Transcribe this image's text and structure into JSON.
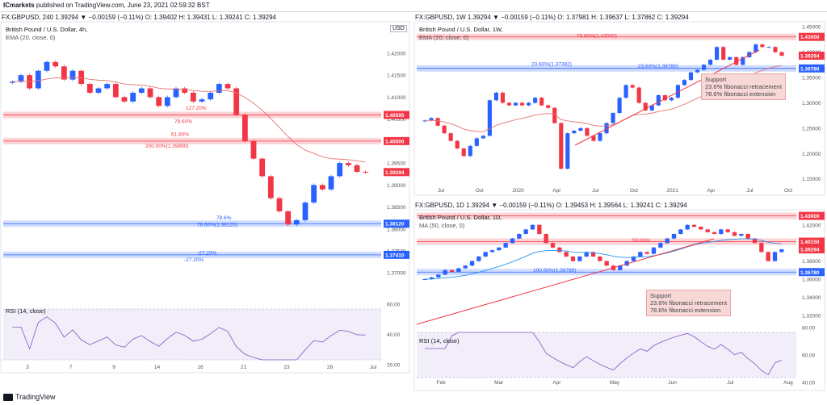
{
  "header": {
    "publisher": "ICmarkets",
    "published_text": "published on TradingView.com, June 23, 2021 02:59:32 BST",
    "logo_text": "TradingView"
  },
  "panels": [
    {
      "id": "gbpusd-4h",
      "header": "FX:GBPUSD, 240  1.39294 ▼ −0.00159 (−0.11%)  O: 1.39402  H: 1.39431  L: 1.39241  C: 1.39294",
      "symbol_title": "British Pound / U.S. Dollar, 4h,",
      "indicator": "EMA (20, close, 0)",
      "currency_badge": "USD",
      "price_labels": [
        "1.42000",
        "1.41500",
        "1.41000",
        "1.40500",
        "1.40000",
        "1.39500",
        "1.39000",
        "1.38500",
        "1.38000",
        "1.37500",
        "1.37000"
      ],
      "highlight_labels": [
        {
          "text": "1.40595",
          "color": "#f23645",
          "y": 1.40595
        },
        {
          "text": "1.40000",
          "color": "#f23645",
          "y": 1.4
        },
        {
          "text": "1.39294",
          "color": "#f23645",
          "y": 1.39294
        },
        {
          "text": "1.38120",
          "color": "#2962ff",
          "y": 1.3812
        },
        {
          "text": "1.37410",
          "color": "#2962ff",
          "y": 1.3741
        }
      ],
      "fib_texts": [
        "127.20%",
        "78.60%",
        "61.80%",
        "200.00%(1.39890)",
        "78.6%",
        "78.60%(1.38120)",
        "-27.20%",
        "-27.20%"
      ],
      "time_labels": [
        "3",
        "7",
        "9",
        "14",
        "16",
        "21",
        "23",
        "28",
        "Jul"
      ],
      "rsi_label": "RSI (14, close)",
      "rsi_levels": [
        "60.00",
        "40.00",
        "20.00"
      ]
    },
    {
      "id": "gbpusd-1w",
      "header": "FX:GBPUSD, 1W  1.39294 ▼ −0.00159 (−0.11%)  O: 1.37981  H: 1.39637  L: 1.37862  C: 1.39294",
      "symbol_title": "British Pound / U.S. Dollar, 1W,",
      "indicator": "EMA (20, close, 0)",
      "price_labels": [
        "1.45000",
        "1.43000",
        "1.40000",
        "1.35000",
        "1.30000",
        "1.25000",
        "1.20000",
        "1.15000"
      ],
      "highlight_labels": [
        {
          "text": "1.43000",
          "color": "#f23645",
          "y": 1.43
        },
        {
          "text": "1.39294",
          "color": "#f23645",
          "y": 1.39294
        },
        {
          "text": "1.36780",
          "color": "#2962ff",
          "y": 1.3678
        }
      ],
      "fib_texts": [
        "78.60%(1.43000)",
        "23.60%(1.37382)",
        "23.60%(1.36780)"
      ],
      "support_note": [
        "Support",
        "23.6% fibonacci retracement",
        "78.6% fibonacci extension"
      ],
      "time_labels": [
        "Jul",
        "Oct",
        "2020",
        "Apr",
        "Jul",
        "Oct",
        "2021",
        "Apr",
        "Jul",
        "Oct"
      ]
    },
    {
      "id": "gbpusd-1d",
      "header": "FX:GBPUSD, 1D  1.39294 ▼ −0.00159 (−0.11%)  O: 1.39453  H: 1.39564  L: 1.39241  C: 1.39294",
      "symbol_title": "British Pound / U.S. Dollar, 1D,",
      "indicator": "MA (50, close, 0)",
      "price_labels": [
        "1.42000",
        "1.40000",
        "1.38000",
        "1.36000",
        "1.34000",
        "1.32000"
      ],
      "highlight_labels": [
        {
          "text": "1.43000",
          "color": "#f23645",
          "y": 1.43
        },
        {
          "text": "1.40150",
          "color": "#f23645",
          "y": 1.4015
        },
        {
          "text": "1.39294",
          "color": "#f23645",
          "y": 1.39294
        },
        {
          "text": "1.36780",
          "color": "#2962ff",
          "y": 1.3678
        }
      ],
      "fib_texts": [
        "50.00%",
        "100.00%(1.36780)"
      ],
      "support_note": [
        "Support",
        "23.6% fibonacci retracement",
        "78.6% fibonacci extension"
      ],
      "time_labels": [
        "Feb",
        "Mar",
        "Apr",
        "May",
        "Jun",
        "Jul",
        "Aug"
      ],
      "rsi_label": "RSI (14, close)",
      "rsi_levels": [
        "80.00",
        "60.00",
        "40.00"
      ]
    }
  ],
  "chart_data": [
    {
      "type": "candlestick",
      "title": "British Pound / U.S. Dollar, 4h,",
      "indicator": "EMA (20, close, 0)",
      "ylim": [
        1.366,
        1.4255
      ],
      "close_approx": [
        1.4135,
        1.415,
        1.412,
        1.416,
        1.418,
        1.417,
        1.414,
        1.416,
        1.413,
        1.411,
        1.412,
        1.413,
        1.41,
        1.409,
        1.411,
        1.412,
        1.41,
        1.408,
        1.41,
        1.412,
        1.411,
        1.409,
        1.4095,
        1.411,
        1.413,
        1.412,
        1.406,
        1.4,
        1.396,
        1.392,
        1.387,
        1.384,
        1.381,
        1.382,
        1.386,
        1.39,
        1.389,
        1.392,
        1.395,
        1.3945,
        1.393,
        1.3929
      ],
      "last_price": 1.39294,
      "levels": [
        1.40595,
        1.4,
        1.3812,
        1.3741
      ]
    },
    {
      "type": "candlestick",
      "title": "British Pound / U.S. Dollar, 1W,",
      "indicator": "EMA (20, close, 0)",
      "ylim": [
        1.14,
        1.455
      ],
      "close_approx": [
        1.265,
        1.27,
        1.255,
        1.24,
        1.225,
        1.21,
        1.195,
        1.215,
        1.23,
        1.235,
        1.305,
        1.32,
        1.3,
        1.295,
        1.3,
        1.295,
        1.3,
        1.31,
        1.295,
        1.29,
        1.26,
        1.17,
        1.24,
        1.245,
        1.25,
        1.235,
        1.225,
        1.24,
        1.26,
        1.28,
        1.31,
        1.335,
        1.33,
        1.3,
        1.285,
        1.295,
        1.315,
        1.305,
        1.31,
        1.335,
        1.345,
        1.36,
        1.365,
        1.375,
        1.385,
        1.41,
        1.385,
        1.39,
        1.375,
        1.39,
        1.4,
        1.415,
        1.41,
        1.41,
        1.4,
        1.393
      ],
      "last_price": 1.39294,
      "levels": [
        1.43,
        1.3678
      ]
    },
    {
      "type": "candlestick",
      "title": "British Pound / U.S. Dollar, 1D,",
      "indicator": "MA (50, close, 0)",
      "ylim": [
        1.31,
        1.435
      ],
      "close_approx": [
        1.36,
        1.362,
        1.365,
        1.37,
        1.368,
        1.372,
        1.375,
        1.38,
        1.385,
        1.39,
        1.392,
        1.395,
        1.4,
        1.405,
        1.41,
        1.415,
        1.42,
        1.41,
        1.4,
        1.395,
        1.39,
        1.385,
        1.38,
        1.385,
        1.39,
        1.385,
        1.38,
        1.375,
        1.37,
        1.375,
        1.38,
        1.385,
        1.39,
        1.388,
        1.395,
        1.4,
        1.405,
        1.41,
        1.415,
        1.42,
        1.418,
        1.415,
        1.412,
        1.41,
        1.415,
        1.412,
        1.408,
        1.41,
        1.405,
        1.4,
        1.39,
        1.38,
        1.39,
        1.393
      ],
      "last_price": 1.39294,
      "levels": [
        1.43,
        1.4015,
        1.3678
      ]
    }
  ]
}
